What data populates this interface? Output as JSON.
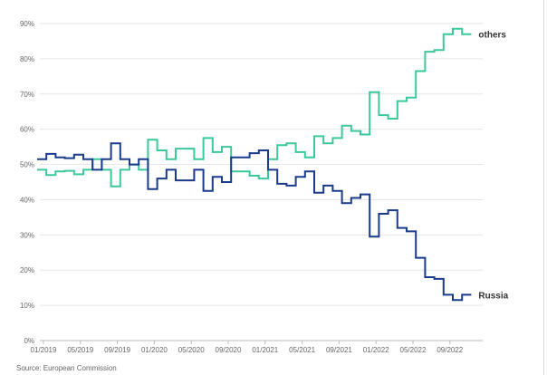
{
  "chart_data": {
    "type": "line",
    "step": true,
    "ylim": [
      0,
      90
    ],
    "y_ticks": [
      0,
      10,
      20,
      30,
      40,
      50,
      60,
      70,
      80,
      90
    ],
    "y_tick_labels": [
      "0%",
      "10%",
      "20%",
      "30%",
      "40%",
      "50%",
      "60%",
      "70%",
      "80%",
      "90%"
    ],
    "x_tick_labels": [
      "01/2019",
      "05/2019",
      "09/2019",
      "01/2020",
      "05/2020",
      "09/2020",
      "01/2021",
      "05/2021",
      "09/2021",
      "01/2022",
      "05/2022",
      "09/2022"
    ],
    "x_start": "01/2019",
    "x_end": "12/2022",
    "grid": true,
    "series": [
      {
        "name": "others",
        "color": "#3cc99a",
        "values": [
          48.5,
          47,
          48,
          48.2,
          47.2,
          48.5,
          51.5,
          48.5,
          43.8,
          48.5,
          50,
          48.5,
          57,
          54,
          51.5,
          54.5,
          54.5,
          51.5,
          57.5,
          53.5,
          55,
          48,
          48,
          46.8,
          46,
          51.5,
          55.5,
          56,
          53.5,
          52,
          58,
          56,
          57.5,
          61,
          59.5,
          58.5,
          70.5,
          64,
          63,
          68,
          69,
          76.5,
          82,
          82.5,
          87,
          88.5,
          87
        ]
      },
      {
        "name": "Russia",
        "color": "#1a3a8c",
        "values": [
          51.5,
          53,
          52,
          51.8,
          52.8,
          51.5,
          48.5,
          51.5,
          56,
          51.5,
          50,
          51.5,
          43,
          46,
          48.5,
          45.5,
          45.5,
          48.5,
          42.5,
          46.5,
          45,
          52,
          52,
          53.2,
          54,
          48.5,
          44.5,
          44,
          46.5,
          48,
          42,
          44,
          42.5,
          39,
          40.5,
          41.5,
          29.5,
          36,
          37,
          32,
          31,
          23.5,
          18,
          17.5,
          13,
          11.5,
          13
        ]
      }
    ]
  },
  "source_text": "Source: European Commission"
}
